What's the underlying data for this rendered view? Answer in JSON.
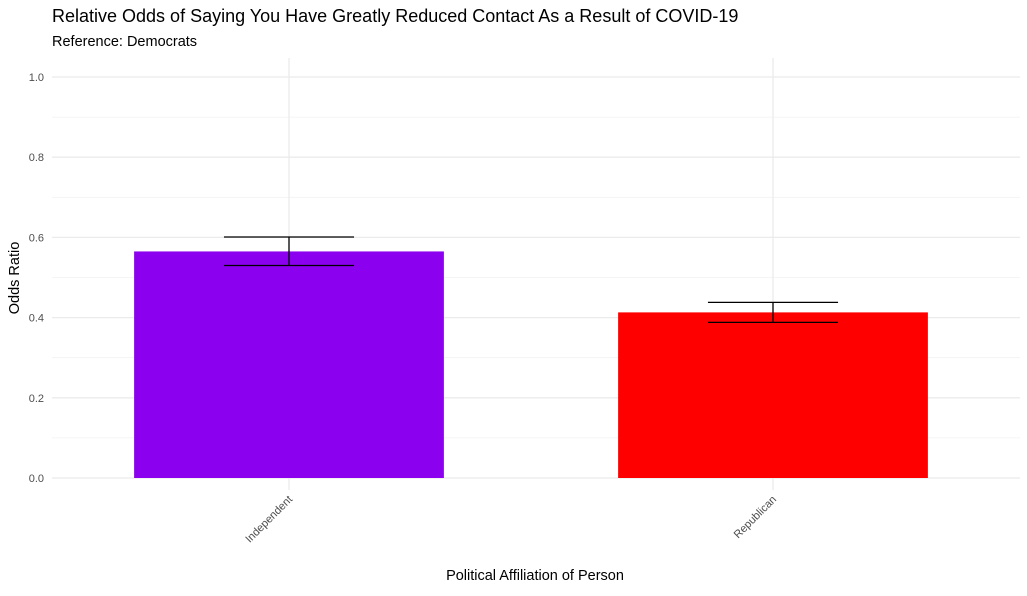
{
  "chart_data": {
    "type": "bar",
    "title": "Relative Odds of Saying You Have Greatly Reduced Contact As a Result of COVID-19",
    "subtitle": "Reference: Democrats",
    "xlabel": "Political Affiliation of Person",
    "ylabel": "Odds Ratio",
    "categories": [
      "Independent",
      "Republican"
    ],
    "values": [
      0.565,
      0.413
    ],
    "error_low": [
      0.53,
      0.388
    ],
    "error_high": [
      0.601,
      0.438
    ],
    "bar_colors": [
      "#8B00EE",
      "#FF0000"
    ],
    "ylim": [
      0,
      1.05
    ],
    "yticks": [
      0.0,
      0.2,
      0.4,
      0.6,
      0.8,
      1.0
    ],
    "ytick_labels": [
      "0.0",
      "0.2",
      "0.4",
      "0.6",
      "0.8",
      "1.0"
    ],
    "grid": true,
    "legend": "none"
  }
}
